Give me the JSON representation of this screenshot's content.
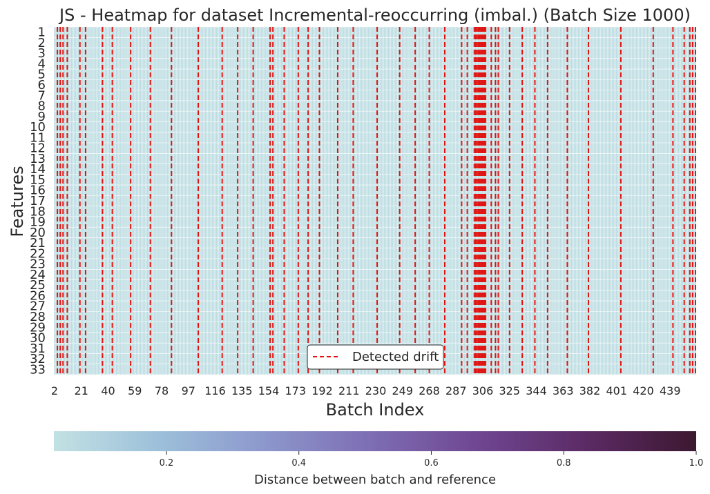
{
  "chart_data": {
    "type": "heatmap",
    "title": "JS - Heatmap for dataset Incremental-reoccurring (imbal.) (Batch Size 1000)",
    "xlabel": "Batch Index",
    "ylabel": "Features",
    "features": [
      1,
      2,
      3,
      4,
      5,
      6,
      7,
      8,
      9,
      10,
      11,
      12,
      13,
      14,
      15,
      16,
      17,
      18,
      19,
      20,
      21,
      22,
      23,
      24,
      25,
      26,
      27,
      28,
      29,
      30,
      31,
      32,
      33
    ],
    "batch_range": [
      2,
      457
    ],
    "x_tick_labels": [
      2,
      21,
      40,
      59,
      78,
      97,
      116,
      135,
      154,
      173,
      192,
      211,
      230,
      249,
      268,
      287,
      306,
      325,
      344,
      363,
      382,
      401,
      420,
      439
    ],
    "cell_value_estimate": 0.05,
    "detected_drift_batches": [
      4,
      6,
      8,
      11,
      20,
      24,
      36,
      43,
      56,
      70,
      85,
      104,
      121,
      132,
      143,
      155,
      157,
      165,
      175,
      182,
      190,
      203,
      214,
      231,
      247,
      258,
      268,
      279,
      291,
      295,
      300,
      301,
      302,
      303,
      304,
      305,
      306,
      307,
      308,
      312,
      315,
      317,
      325,
      334,
      343,
      352,
      366,
      381,
      404,
      427,
      441,
      449,
      453,
      455,
      457
    ],
    "colorbar": {
      "label": "Distance between batch and reference",
      "range": [
        0.03,
        1.0
      ],
      "ticks": [
        0.2,
        0.4,
        0.6,
        0.8,
        1.0
      ],
      "tick_labels": [
        "0.2",
        "0.4",
        "0.6",
        "0.8",
        "1.0"
      ],
      "colors": [
        "#c2e1e3",
        "#9cbfda",
        "#8c96cc",
        "#7d6cb2",
        "#6f4590",
        "#5a2a63",
        "#3c1830"
      ]
    },
    "drift_color": "#e0120f",
    "gridline_color": "#ffffff",
    "legend": {
      "label": "Detected drift",
      "position": "bottom-center"
    }
  }
}
